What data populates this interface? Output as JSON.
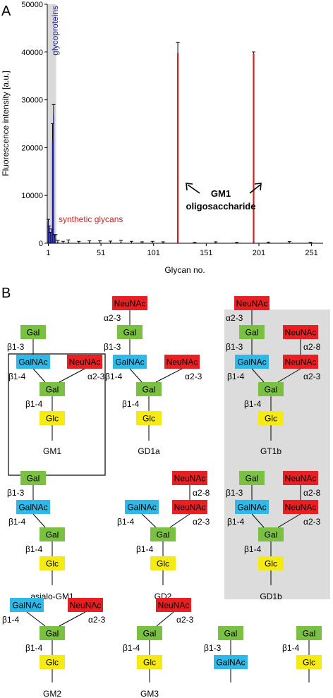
{
  "panels": {
    "a_label": "A",
    "b_label": "B"
  },
  "chart_data": {
    "type": "bar",
    "xlabel": "Glycan no.",
    "ylabel": "Fluorescence intensity [a.u.]",
    "xlim": [
      0,
      262
    ],
    "ylim": [
      0,
      50000
    ],
    "x_ticks": [
      1,
      51,
      101,
      151,
      201,
      251
    ],
    "y_ticks": [
      0,
      10000,
      20000,
      30000,
      40000,
      50000
    ],
    "shaded_region": {
      "x": [
        1,
        8
      ],
      "label": "glycoproteins",
      "label_color": "#1a1a8c"
    },
    "synthetic_label": "synthetic glycans",
    "synthetic_color": "#cc2222",
    "annotation": {
      "line1": "GM1",
      "line2": "oligosaccharide",
      "targets": [
        124,
        196
      ]
    },
    "series": [
      {
        "color": "#1a1a8c",
        "points": [
          {
            "x": 1,
            "y": 4500,
            "err": 500
          },
          {
            "x": 2,
            "y": 3200,
            "err": 400
          },
          {
            "x": 3,
            "y": 2000,
            "err": 300
          },
          {
            "x": 4,
            "y": 2400,
            "err": 600
          },
          {
            "x": 5,
            "y": 21500,
            "err": 3500
          },
          {
            "x": 6,
            "y": 27000,
            "err": 2000
          },
          {
            "x": 7,
            "y": 1000,
            "err": 800
          },
          {
            "x": 8,
            "y": 1200,
            "err": 600
          }
        ]
      },
      {
        "color": "#cc2222",
        "points": [
          {
            "x": 124,
            "y": 39800,
            "err": 2200
          },
          {
            "x": 196,
            "y": 39700,
            "err": 300
          }
        ]
      },
      {
        "color": "#000000",
        "points": [
          {
            "x": 10,
            "y": 300,
            "err": 300
          },
          {
            "x": 15,
            "y": 200,
            "err": 200
          },
          {
            "x": 20,
            "y": 400,
            "err": 300
          },
          {
            "x": 30,
            "y": 200,
            "err": 200
          },
          {
            "x": 40,
            "y": 300,
            "err": 200
          },
          {
            "x": 50,
            "y": 200,
            "err": 300
          },
          {
            "x": 60,
            "y": 250,
            "err": 200
          },
          {
            "x": 70,
            "y": 300,
            "err": 300
          },
          {
            "x": 80,
            "y": 200,
            "err": 200
          },
          {
            "x": 90,
            "y": 150,
            "err": 150
          },
          {
            "x": 100,
            "y": 200,
            "err": 200
          },
          {
            "x": 110,
            "y": 150,
            "err": 150
          },
          {
            "x": 140,
            "y": 100,
            "err": 100
          },
          {
            "x": 160,
            "y": 150,
            "err": 150
          },
          {
            "x": 180,
            "y": 100,
            "err": 100
          },
          {
            "x": 210,
            "y": 120,
            "err": 120
          },
          {
            "x": 230,
            "y": 200,
            "err": 150
          },
          {
            "x": 250,
            "y": 100,
            "err": 100
          }
        ]
      }
    ]
  },
  "glycan_diagrams": {
    "colors": {
      "gal": "#7ac143",
      "glc": "#f5ea14",
      "galnac": "#2fb9e8",
      "neuac": "#e82023"
    },
    "labels": {
      "gal": "Gal",
      "glc": "Glc",
      "galnac": "GalNAc",
      "neuac": "NeuNAc",
      "b13": "β1-3",
      "b14": "β1-4",
      "a23": "α2-3",
      "a28": "α2-8"
    },
    "names": {
      "gm1": "GM1",
      "gd1a": "GD1a",
      "gt1b": "GT1b",
      "asialo_gm1": "asialo-GM1",
      "gd2": "GD2",
      "gd1b": "GD1b",
      "gm2": "GM2",
      "gm3": "GM3"
    }
  }
}
